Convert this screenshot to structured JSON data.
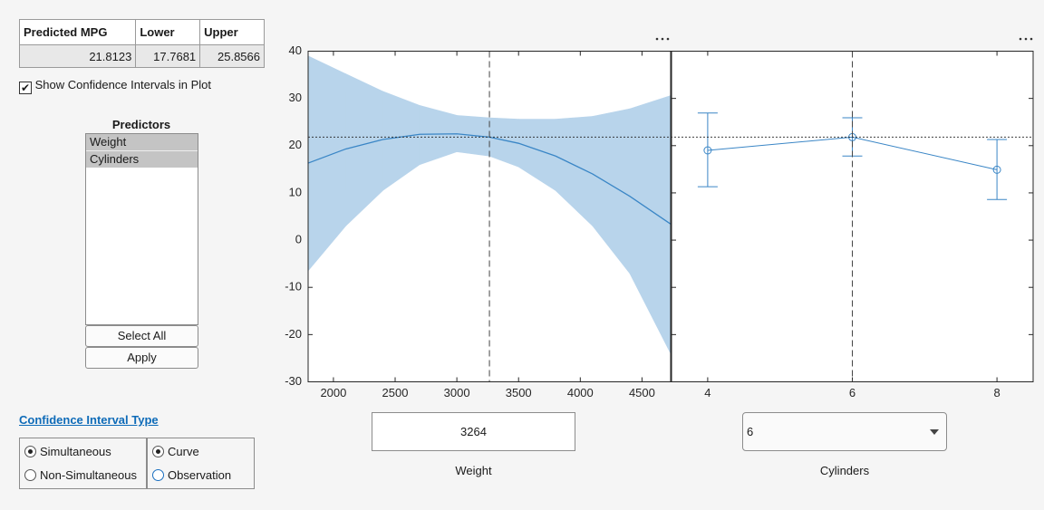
{
  "table": {
    "columns": [
      "Predicted MPG",
      "Lower",
      "Upper"
    ],
    "rows": [
      [
        21.8123,
        17.7681,
        25.8566
      ]
    ]
  },
  "show_ci_checkbox": {
    "label": "Show Confidence Intervals in Plot",
    "checked": true
  },
  "predictors": {
    "title": "Predictors",
    "items": [
      "Weight",
      "Cylinders"
    ]
  },
  "buttons": [
    "Select All",
    "Apply"
  ],
  "ci_type": {
    "title": "Confidence Interval Type",
    "groups": [
      {
        "options": [
          "Simultaneous",
          "Non-Simultaneous"
        ],
        "selected": 0
      },
      {
        "options": [
          "Curve",
          "Observation"
        ],
        "selected": 0
      }
    ]
  },
  "weight_input": {
    "label": "Weight",
    "value": 3264
  },
  "cylinders_dropdown": {
    "label": "Cylinders",
    "value": 6
  },
  "chart_data": [
    {
      "type": "line",
      "color": "#3a86c6",
      "band_color": "#b8d4eb",
      "x": [
        1795,
        2100,
        2400,
        2700,
        3000,
        3264,
        3500,
        3800,
        4100,
        4400,
        4732
      ],
      "values": [
        16.3,
        19.3,
        21.3,
        22.4,
        22.5,
        21.8,
        20.5,
        17.8,
        14.0,
        9.3,
        3.4
      ],
      "lower": [
        -6.5,
        3,
        10.5,
        16,
        18.7,
        17.8,
        15.5,
        10.5,
        3,
        -7,
        -24
      ],
      "upper": [
        39,
        35.2,
        31.5,
        28.5,
        26.4,
        25.9,
        25.6,
        25.6,
        26.2,
        27.8,
        30.6
      ],
      "xlim": [
        1795,
        4732
      ],
      "xticks": [
        2000,
        2500,
        3000,
        3500,
        4000,
        4500
      ],
      "ylim": [
        -30,
        40
      ],
      "yticks": [
        -30,
        -20,
        -10,
        0,
        10,
        20,
        30,
        40
      ]
    },
    {
      "type": "errorbar",
      "color": "#3a86c6",
      "x": [
        4,
        6,
        8
      ],
      "values": [
        19.0,
        21.8,
        14.9
      ],
      "lower": [
        11.3,
        17.8,
        8.6
      ],
      "upper": [
        26.9,
        25.9,
        21.3
      ],
      "xlim": [
        3.5,
        8.5
      ],
      "xticks": [
        4,
        6,
        8
      ],
      "ylim": [
        -30,
        40
      ],
      "yticks": [
        -30,
        -20,
        -10,
        0,
        10,
        20,
        30,
        40
      ]
    }
  ]
}
